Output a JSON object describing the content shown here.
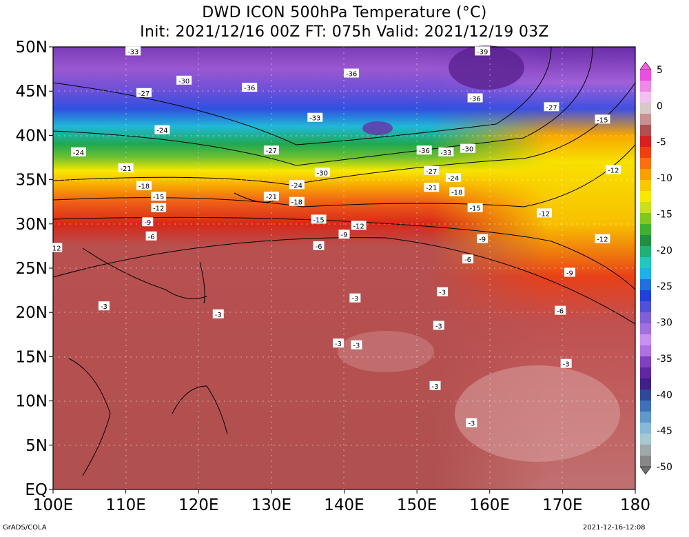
{
  "title": {
    "line1": "DWD ICON 500hPa Temperature (°C)",
    "line2": "Init: 2021/12/16 00Z  FT: 075h  Valid: 2021/12/19 03Z"
  },
  "map": {
    "lat_ticks": [
      "50N",
      "45N",
      "40N",
      "35N",
      "30N",
      "25N",
      "20N",
      "15N",
      "10N",
      "5N",
      "EQ"
    ],
    "lon_ticks": [
      "100E",
      "110E",
      "120E",
      "130E",
      "140E",
      "150E",
      "160E",
      "170E",
      "180"
    ],
    "lat_values": [
      50,
      45,
      40,
      35,
      30,
      25,
      20,
      15,
      10,
      5,
      0
    ],
    "lon_values": [
      100,
      110,
      120,
      130,
      140,
      150,
      160,
      170,
      180
    ],
    "contour_labels": [
      {
        "text": "-33",
        "lon": 111,
        "lat": 49.5
      },
      {
        "text": "-39",
        "lon": 159,
        "lat": 49.5
      },
      {
        "text": "-30",
        "lon": 118,
        "lat": 46.2
      },
      {
        "text": "-36",
        "lon": 127,
        "lat": 45.4
      },
      {
        "text": "-36",
        "lon": 141,
        "lat": 47.0
      },
      {
        "text": "-27",
        "lon": 112.5,
        "lat": 44.8
      },
      {
        "text": "-36",
        "lon": 158,
        "lat": 44.2
      },
      {
        "text": "-27",
        "lon": 168.5,
        "lat": 43.2
      },
      {
        "text": "-33",
        "lon": 136,
        "lat": 42.0
      },
      {
        "text": "-15",
        "lon": 175.5,
        "lat": 41.8
      },
      {
        "text": "-24",
        "lon": 115,
        "lat": 40.6
      },
      {
        "text": "-24",
        "lon": 103.5,
        "lat": 38.1
      },
      {
        "text": "-27",
        "lon": 130,
        "lat": 38.3
      },
      {
        "text": "-36",
        "lon": 151,
        "lat": 38.3
      },
      {
        "text": "-33",
        "lon": 154,
        "lat": 38.1
      },
      {
        "text": "-30",
        "lon": 157,
        "lat": 38.5
      },
      {
        "text": "-21",
        "lon": 110,
        "lat": 36.3
      },
      {
        "text": "-30",
        "lon": 137,
        "lat": 35.8
      },
      {
        "text": "-27",
        "lon": 152,
        "lat": 36.0
      },
      {
        "text": "-24",
        "lon": 155,
        "lat": 35.2
      },
      {
        "text": "-12",
        "lon": 177,
        "lat": 36.1
      },
      {
        "text": "-18",
        "lon": 112.5,
        "lat": 34.3
      },
      {
        "text": "-24",
        "lon": 133.5,
        "lat": 34.4
      },
      {
        "text": "-21",
        "lon": 152,
        "lat": 34.1
      },
      {
        "text": "-18",
        "lon": 155.5,
        "lat": 33.6
      },
      {
        "text": "-15",
        "lon": 114.5,
        "lat": 33.1
      },
      {
        "text": "-21",
        "lon": 130,
        "lat": 33.1
      },
      {
        "text": "-18",
        "lon": 133.5,
        "lat": 32.5
      },
      {
        "text": "-12",
        "lon": 114.5,
        "lat": 31.8
      },
      {
        "text": "-15",
        "lon": 158,
        "lat": 31.8
      },
      {
        "text": "-12",
        "lon": 167.5,
        "lat": 31.2
      },
      {
        "text": "-15",
        "lon": 136.5,
        "lat": 30.5
      },
      {
        "text": "-9",
        "lon": 113,
        "lat": 30.2
      },
      {
        "text": "-12",
        "lon": 142,
        "lat": 29.8
      },
      {
        "text": "-6",
        "lon": 113.5,
        "lat": 28.6
      },
      {
        "text": "-9",
        "lon": 140,
        "lat": 28.8
      },
      {
        "text": "-9",
        "lon": 159,
        "lat": 28.3
      },
      {
        "text": "-12",
        "lon": 175.5,
        "lat": 28.3
      },
      {
        "text": "-6",
        "lon": 136.5,
        "lat": 27.5
      },
      {
        "text": "12",
        "lon": 100.5,
        "lat": 27.3
      },
      {
        "text": "-6",
        "lon": 157,
        "lat": 26.0
      },
      {
        "text": "-9",
        "lon": 171,
        "lat": 24.5
      },
      {
        "text": "-3",
        "lon": 153.5,
        "lat": 22.3
      },
      {
        "text": "-3",
        "lon": 141.5,
        "lat": 21.6
      },
      {
        "text": "-3",
        "lon": 107,
        "lat": 20.7
      },
      {
        "text": "-6",
        "lon": 169.7,
        "lat": 20.2
      },
      {
        "text": "-3",
        "lon": 122.7,
        "lat": 19.8
      },
      {
        "text": "-3",
        "lon": 153,
        "lat": 18.5
      },
      {
        "text": "-3",
        "lon": 139.2,
        "lat": 16.5
      },
      {
        "text": "-3",
        "lon": 141.7,
        "lat": 16.3
      },
      {
        "text": "-3",
        "lon": 170.5,
        "lat": 14.2
      },
      {
        "text": "-3",
        "lon": 152.5,
        "lat": 11.7
      },
      {
        "text": "-3",
        "lon": 157.5,
        "lat": 7.5
      }
    ]
  },
  "colorbar": {
    "labels": [
      "5",
      "0",
      "-5",
      "-10",
      "-15",
      "-20",
      "-25",
      "-30",
      "-35",
      "-40",
      "-45",
      "-50"
    ],
    "values": [
      5,
      0,
      -5,
      -10,
      -15,
      -20,
      -25,
      -30,
      -35,
      -40,
      -45,
      -50
    ]
  },
  "colors": {
    "warm_tropics": "#b45a5a",
    "red_band": "#e83020",
    "orange_band": "#f8a000",
    "yellow_band": "#f8e800",
    "green_band": "#20a040",
    "cyan_band": "#20c8d8",
    "blue_band": "#2848e0",
    "purple_band": "#a868e0",
    "deep_purple": "#6028a0"
  },
  "footer": {
    "left": "GrADS/COLA",
    "right": "2021-12-16-12:08"
  }
}
